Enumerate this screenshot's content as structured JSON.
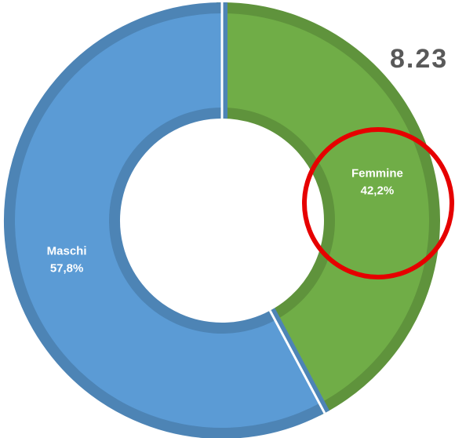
{
  "chart_data": {
    "type": "donut",
    "title": "8.23",
    "categories": [
      "Femmine",
      "Maschi"
    ],
    "values": [
      42.2,
      57.8
    ],
    "value_labels": [
      "42,2%",
      "57,8%"
    ],
    "colors": [
      "#70ad47",
      "#5b9bd5"
    ]
  }
}
